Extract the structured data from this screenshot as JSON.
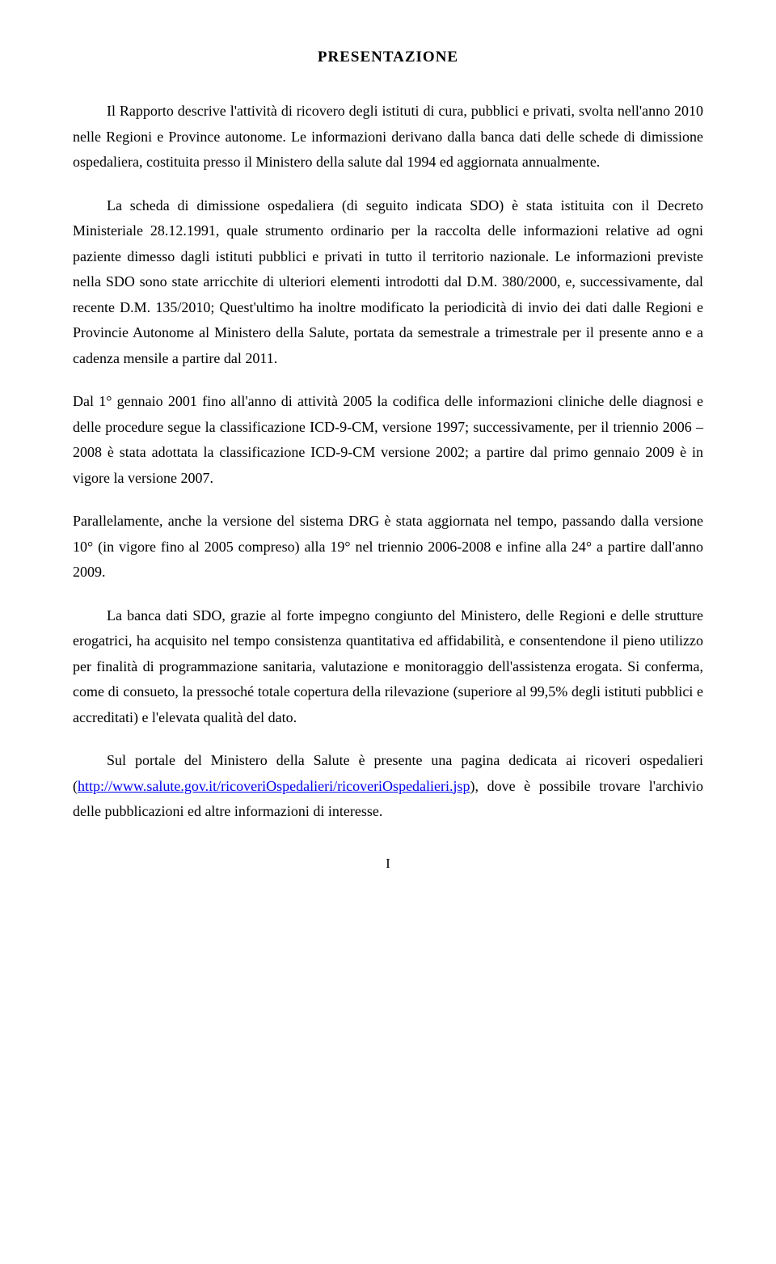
{
  "title": "PRESENTAZIONE",
  "paragraphs": {
    "p1": "Il Rapporto descrive l'attività di ricovero degli istituti di cura, pubblici e privati, svolta nell'anno 2010 nelle Regioni e Province autonome. Le informazioni derivano dalla banca dati delle schede di dimissione ospedaliera, costituita presso il Ministero della salute dal 1994 ed aggiornata annualmente.",
    "p2": "La scheda di dimissione ospedaliera (di seguito indicata SDO) è stata istituita con il Decreto Ministeriale 28.12.1991, quale strumento ordinario per la raccolta delle informazioni relative ad ogni paziente dimesso dagli istituti pubblici e privati in tutto il territorio nazionale. Le informazioni previste nella SDO sono state arricchite di ulteriori elementi introdotti dal D.M. 380/2000, e, successivamente, dal recente D.M. 135/2010; Quest'ultimo ha inoltre modificato la periodicità di invio dei dati dalle Regioni e Provincie Autonome al Ministero della Salute, portata da semestrale a trimestrale per il presente anno e a cadenza mensile a partire dal 2011.",
    "p3": "Dal 1° gennaio 2001 fino all'anno di attività 2005 la codifica delle informazioni cliniche delle diagnosi e delle procedure segue la classificazione ICD-9-CM, versione 1997; successivamente, per il triennio 2006 – 2008 è stata adottata la classificazione ICD-9-CM versione 2002; a partire dal primo gennaio 2009 è in vigore la versione 2007.",
    "p4": "Parallelamente, anche la versione del sistema DRG è stata aggiornata nel tempo, passando dalla versione 10° (in vigore fino al 2005 compreso) alla 19° nel triennio 2006-2008 e infine alla 24° a partire dall'anno 2009.",
    "p5": "La banca dati SDO, grazie al forte impegno congiunto del Ministero, delle Regioni e delle strutture erogatrici, ha acquisito nel tempo consistenza quantitativa ed affidabilità, e consentendone il pieno utilizzo per finalità di programmazione sanitaria, valutazione e monitoraggio dell'assistenza erogata. Si conferma, come di consueto, la pressoché totale copertura della rilevazione (superiore al 99,5% degli istituti pubblici e accreditati) e l'elevata qualità del dato.",
    "p6_part1": "Sul portale del Ministero della Salute è presente una pagina dedicata ai ricoveri ospedalieri (",
    "p6_link": "http://www.salute.gov.it/ricoveriOspedalieri/ricoveriOspedalieri.jsp",
    "p6_part2": "), dove è possibile trovare l'archivio delle pubblicazioni ed altre informazioni di interesse."
  },
  "pageNumber": "I",
  "colors": {
    "text": "#000000",
    "background": "#ffffff",
    "link": "#0000ee"
  },
  "typography": {
    "font_family": "Georgia, Times New Roman, serif",
    "body_fontsize": 18,
    "title_fontsize": 19,
    "line_height": 1.75
  }
}
